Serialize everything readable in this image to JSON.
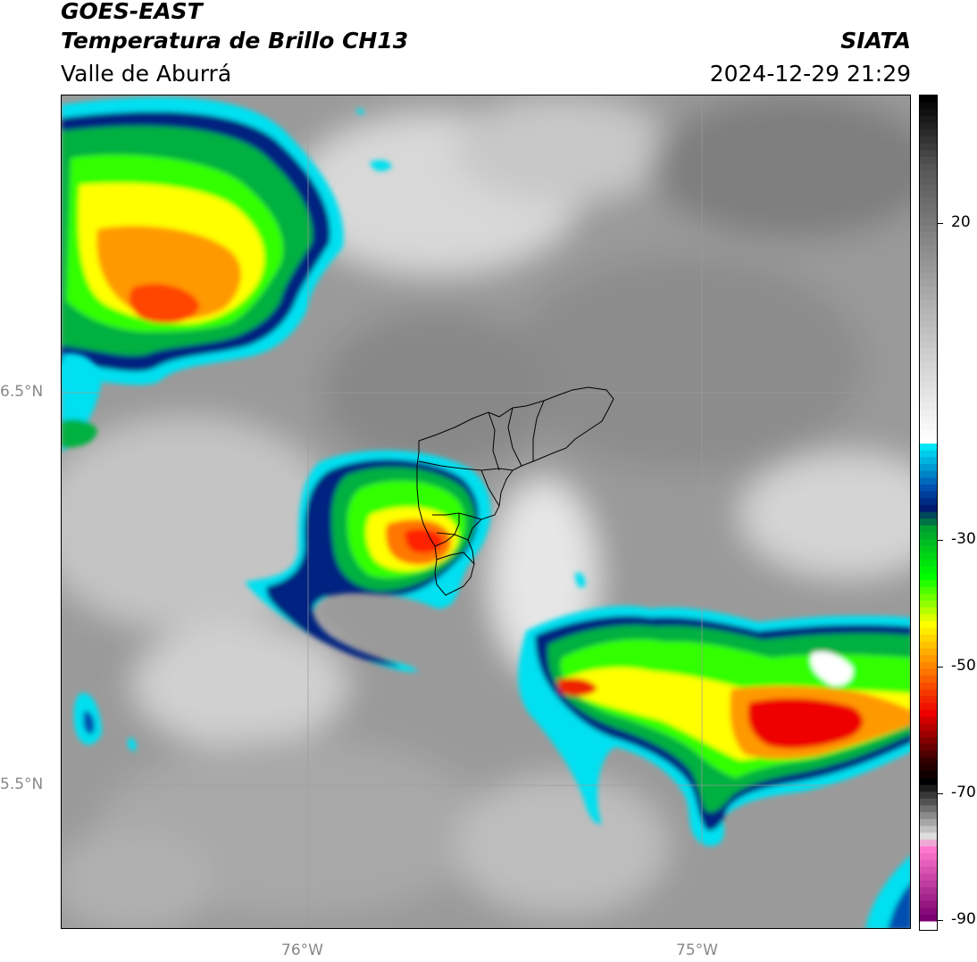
{
  "header": {
    "line1": "GOES-EAST",
    "line2": "Temperatura de Brillo CH13",
    "line3": "Valle de Aburrá",
    "org": "SIATA",
    "timestamp": "2024-12-29 21:29"
  },
  "map": {
    "lat_labels": [
      "6.5°N",
      "5.5°N"
    ],
    "lon_labels": [
      "76°W",
      "75°W"
    ],
    "background_color": "#9a9a9a",
    "boundary_color": "#000000"
  },
  "colorbar": {
    "ticks": [
      "20",
      "-30",
      "-50",
      "-70",
      "-90"
    ],
    "stops": [
      {
        "value": 30,
        "color": "#000000"
      },
      {
        "value": 20,
        "color": "#555555"
      },
      {
        "value": 0,
        "color": "#b0b0b0"
      },
      {
        "value": -20,
        "color": "#ffffff"
      },
      {
        "value": -21,
        "color": "#00e5f5"
      },
      {
        "value": -27,
        "color": "#0050b0"
      },
      {
        "value": -30,
        "color": "#001a70"
      },
      {
        "value": -33,
        "color": "#00a030"
      },
      {
        "value": -40,
        "color": "#00ff00"
      },
      {
        "value": -47,
        "color": "#ffff00"
      },
      {
        "value": -52,
        "color": "#ff9900"
      },
      {
        "value": -60,
        "color": "#ee0000"
      },
      {
        "value": -67,
        "color": "#330000"
      },
      {
        "value": -70,
        "color": "#000000"
      },
      {
        "value": -78,
        "color": "#dddddd"
      },
      {
        "value": -80,
        "color": "#ff77cc"
      },
      {
        "value": -90,
        "color": "#7a0070"
      },
      {
        "value": -91,
        "color": "#ffffff"
      }
    ]
  }
}
